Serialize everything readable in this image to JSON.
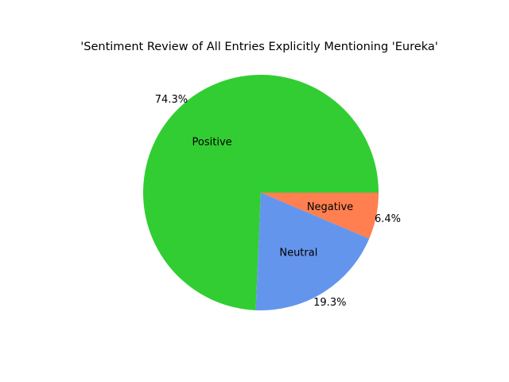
{
  "chart_data": {
    "type": "pie",
    "title": "'Sentiment Review of All Entries Explicitly Mentioning 'Eureka'",
    "labels": [
      "Positive",
      "Neutral",
      "Negative"
    ],
    "values": [
      74.3,
      19.3,
      6.4
    ],
    "percent_labels": [
      "74.3%",
      "19.3%",
      "6.4%"
    ],
    "colors": [
      "#32cd32",
      "#6495ed",
      "#ff7f50"
    ],
    "start_angle_deg": 0,
    "direction": "counterclockwise",
    "legend": "none"
  }
}
